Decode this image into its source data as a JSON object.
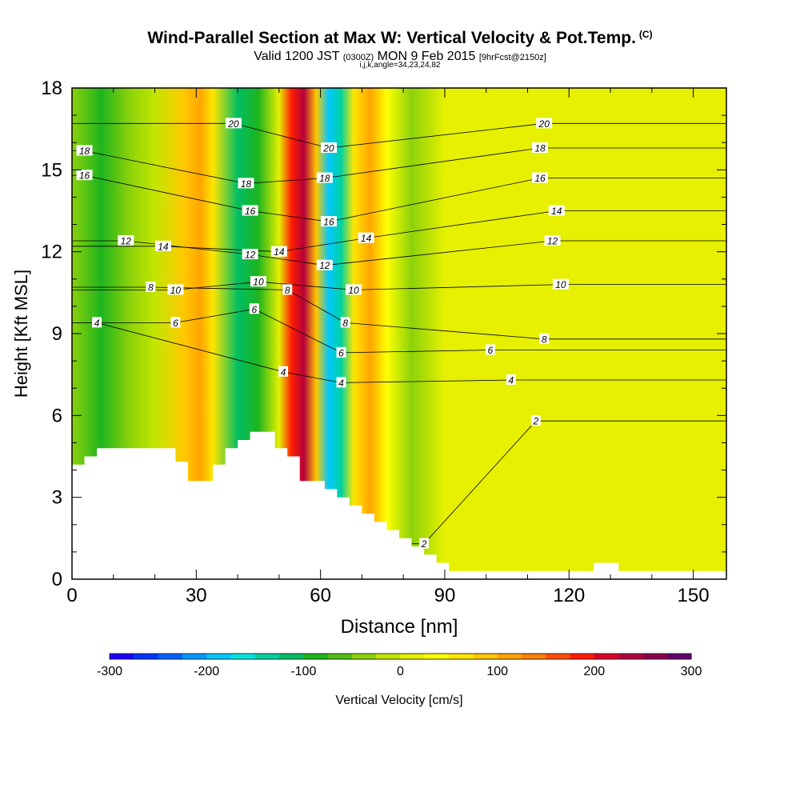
{
  "header": {
    "title": "Wind-Parallel Section at Max W: Vertical Velocity & Pot.Temp.",
    "title_unit": "(C)",
    "valid_a": "Valid 1200 JST",
    "valid_z": "(0300Z)",
    "valid_b": "MON 9 Feb 2015",
    "valid_fcst": "[9hrFcst@2150z]",
    "indices": "i,j,k,angle=34,23,24,82"
  },
  "chart_data": {
    "type": "heatmap",
    "xlabel": "Distance [nm]",
    "ylabel": "Height [Kft MSL]",
    "xlim": [
      0,
      158
    ],
    "ylim": [
      0,
      18
    ],
    "x_ticks": [
      "0",
      "30",
      "60",
      "90",
      "120",
      "150"
    ],
    "y_ticks": [
      "0",
      "3",
      "6",
      "9",
      "12",
      "15",
      "18"
    ],
    "colorbar": {
      "label": "Vertical Velocity [cm/s]",
      "ticks": [
        "-300",
        "-200",
        "-100",
        "0",
        "100",
        "200",
        "300"
      ],
      "range": [
        -300,
        300
      ],
      "colors": [
        "#1e00ff",
        "#0036ff",
        "#0064ff",
        "#009bff",
        "#00c8ff",
        "#00e6e1",
        "#00d2a0",
        "#00be64",
        "#1eb41e",
        "#50be14",
        "#8cd20a",
        "#c3e600",
        "#e6f000",
        "#ffff00",
        "#ffe600",
        "#ffc800",
        "#ffa500",
        "#ff8200",
        "#ff5000",
        "#ff1e00",
        "#dc0028",
        "#b4003c",
        "#8c0050",
        "#64006e"
      ]
    },
    "velocity_bands": [
      {
        "x": 0,
        "w": -40
      },
      {
        "x": 7,
        "w": -80
      },
      {
        "x": 14,
        "w": -40
      },
      {
        "x": 20,
        "w": -10
      },
      {
        "x": 27,
        "w": 80
      },
      {
        "x": 31,
        "w": 120
      },
      {
        "x": 34,
        "w": 50
      },
      {
        "x": 40,
        "w": -110
      },
      {
        "x": 45,
        "w": -90
      },
      {
        "x": 50,
        "w": 10
      },
      {
        "x": 53,
        "w": 180
      },
      {
        "x": 56,
        "w": 230
      },
      {
        "x": 59,
        "w": 80
      },
      {
        "x": 62,
        "w": -200
      },
      {
        "x": 65,
        "w": -140
      },
      {
        "x": 68,
        "w": 60
      },
      {
        "x": 72,
        "w": 110
      },
      {
        "x": 76,
        "w": 40
      },
      {
        "x": 82,
        "w": -50
      },
      {
        "x": 90,
        "w": 0
      },
      {
        "x": 110,
        "w": 20
      },
      {
        "x": 158,
        "w": 5
      }
    ],
    "theta_contours": [
      {
        "value": 2,
        "labels": [
          [
            112,
            5.8
          ],
          [
            85,
            1.3
          ]
        ]
      },
      {
        "value": 4,
        "labels": [
          [
            6,
            9.4
          ],
          [
            51,
            7.6
          ],
          [
            65,
            7.2
          ],
          [
            106,
            7.3
          ]
        ]
      },
      {
        "value": 6,
        "labels": [
          [
            25,
            9.4
          ],
          [
            44,
            9.9
          ],
          [
            65,
            8.3
          ],
          [
            101,
            8.4
          ]
        ]
      },
      {
        "value": 8,
        "labels": [
          [
            19,
            10.7
          ],
          [
            52,
            10.6
          ],
          [
            66,
            9.4
          ],
          [
            114,
            8.8
          ]
        ]
      },
      {
        "value": 10,
        "labels": [
          [
            25,
            10.6
          ],
          [
            45,
            10.9
          ],
          [
            68,
            10.6
          ],
          [
            118,
            10.8
          ]
        ]
      },
      {
        "value": 12,
        "labels": [
          [
            13,
            12.4
          ],
          [
            43,
            11.9
          ],
          [
            61,
            11.5
          ],
          [
            116,
            12.4
          ]
        ]
      },
      {
        "value": 14,
        "labels": [
          [
            22,
            12.2
          ],
          [
            50,
            12.0
          ],
          [
            71,
            12.5
          ],
          [
            117,
            13.5
          ]
        ]
      },
      {
        "value": 16,
        "labels": [
          [
            3,
            14.8
          ],
          [
            43,
            13.5
          ],
          [
            62,
            13.1
          ],
          [
            113,
            14.7
          ]
        ]
      },
      {
        "value": 18,
        "labels": [
          [
            3,
            15.7
          ],
          [
            42,
            14.5
          ],
          [
            61,
            14.7
          ],
          [
            113,
            15.8
          ]
        ]
      },
      {
        "value": 20,
        "labels": [
          [
            39,
            16.7
          ],
          [
            62,
            15.8
          ],
          [
            114,
            16.7
          ]
        ]
      }
    ],
    "terrain": [
      [
        0,
        4.2
      ],
      [
        3,
        4.2
      ],
      [
        3,
        4.5
      ],
      [
        6,
        4.5
      ],
      [
        6,
        4.8
      ],
      [
        25,
        4.8
      ],
      [
        25,
        4.3
      ],
      [
        28,
        4.3
      ],
      [
        28,
        3.6
      ],
      [
        34,
        3.6
      ],
      [
        34,
        4.2
      ],
      [
        37,
        4.2
      ],
      [
        37,
        4.8
      ],
      [
        40,
        4.8
      ],
      [
        40,
        5.1
      ],
      [
        43,
        5.1
      ],
      [
        43,
        5.4
      ],
      [
        49,
        5.4
      ],
      [
        49,
        4.8
      ],
      [
        52,
        4.8
      ],
      [
        52,
        4.5
      ],
      [
        55,
        4.5
      ],
      [
        55,
        3.6
      ],
      [
        58,
        3.6
      ],
      [
        58,
        3.6
      ],
      [
        61,
        3.6
      ],
      [
        61,
        3.3
      ],
      [
        64,
        3.3
      ],
      [
        64,
        3.0
      ],
      [
        67,
        3.0
      ],
      [
        67,
        2.7
      ],
      [
        70,
        2.7
      ],
      [
        70,
        2.4
      ],
      [
        73,
        2.4
      ],
      [
        73,
        2.1
      ],
      [
        76,
        2.1
      ],
      [
        76,
        1.8
      ],
      [
        79,
        1.8
      ],
      [
        79,
        1.5
      ],
      [
        82,
        1.5
      ],
      [
        82,
        1.2
      ],
      [
        85,
        1.2
      ],
      [
        85,
        0.9
      ],
      [
        88,
        0.9
      ],
      [
        88,
        0.6
      ],
      [
        91,
        0.6
      ],
      [
        91,
        0.3
      ],
      [
        126,
        0.3
      ],
      [
        126,
        0.6
      ],
      [
        132,
        0.6
      ],
      [
        132,
        0.3
      ],
      [
        158,
        0.3
      ]
    ]
  }
}
